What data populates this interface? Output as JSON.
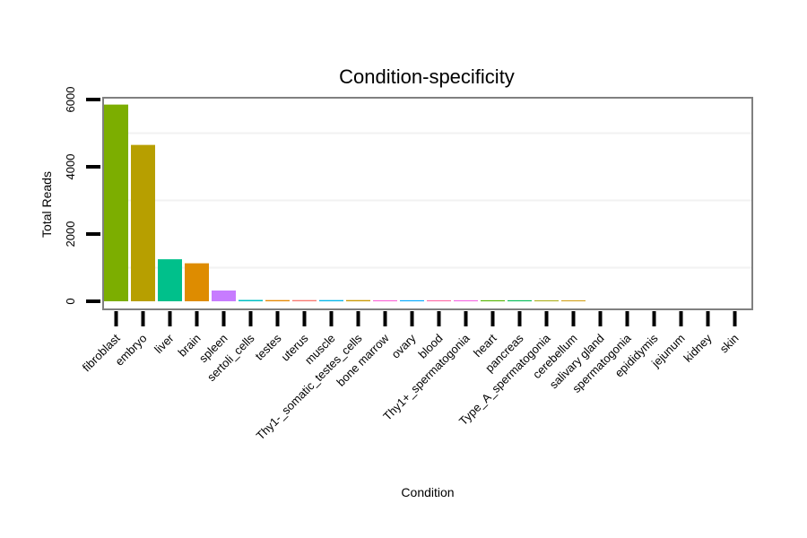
{
  "chart_data": {
    "type": "bar",
    "title": "Condition-specificity",
    "xlabel": "Condition",
    "ylabel": "Total Reads",
    "ylim": [
      0,
      6000
    ],
    "yticks": [
      0,
      2000,
      4000,
      6000
    ],
    "grid": true,
    "categories": [
      "fibroblast",
      "embryo",
      "liver",
      "brain",
      "spleen",
      "sertoli_cells",
      "testes",
      "uterus",
      "muscle",
      "Thy1-_somatic_testes_cells",
      "bone marrow",
      "ovary",
      "blood",
      "Thy1+_spermatogonia",
      "heart",
      "pancreas",
      "Type_A_spermatogonia",
      "cerebellum",
      "salivary gland",
      "spermatogonia",
      "epididymis",
      "jejunum",
      "kidney",
      "skin"
    ],
    "values": [
      5850,
      4650,
      1250,
      1130,
      320,
      40,
      35,
      35,
      35,
      35,
      30,
      30,
      30,
      30,
      30,
      30,
      25,
      25,
      0,
      0,
      0,
      0,
      0,
      0
    ],
    "colors": [
      "#7cae00",
      "#b79f00",
      "#00c08b",
      "#de8c00",
      "#c77cff",
      "#00bfc4",
      "#e58700",
      "#f8766d",
      "#00b6eb",
      "#c99800",
      "#fb61d7",
      "#00a9ff",
      "#ff67a4",
      "#f564e3",
      "#53b400",
      "#00bc56",
      "#a3a500",
      "#cd9600",
      "#619cff",
      "#00c1a3",
      "#e76bf3",
      "#9590ff",
      "#ff6c90",
      "#00ba38"
    ]
  }
}
